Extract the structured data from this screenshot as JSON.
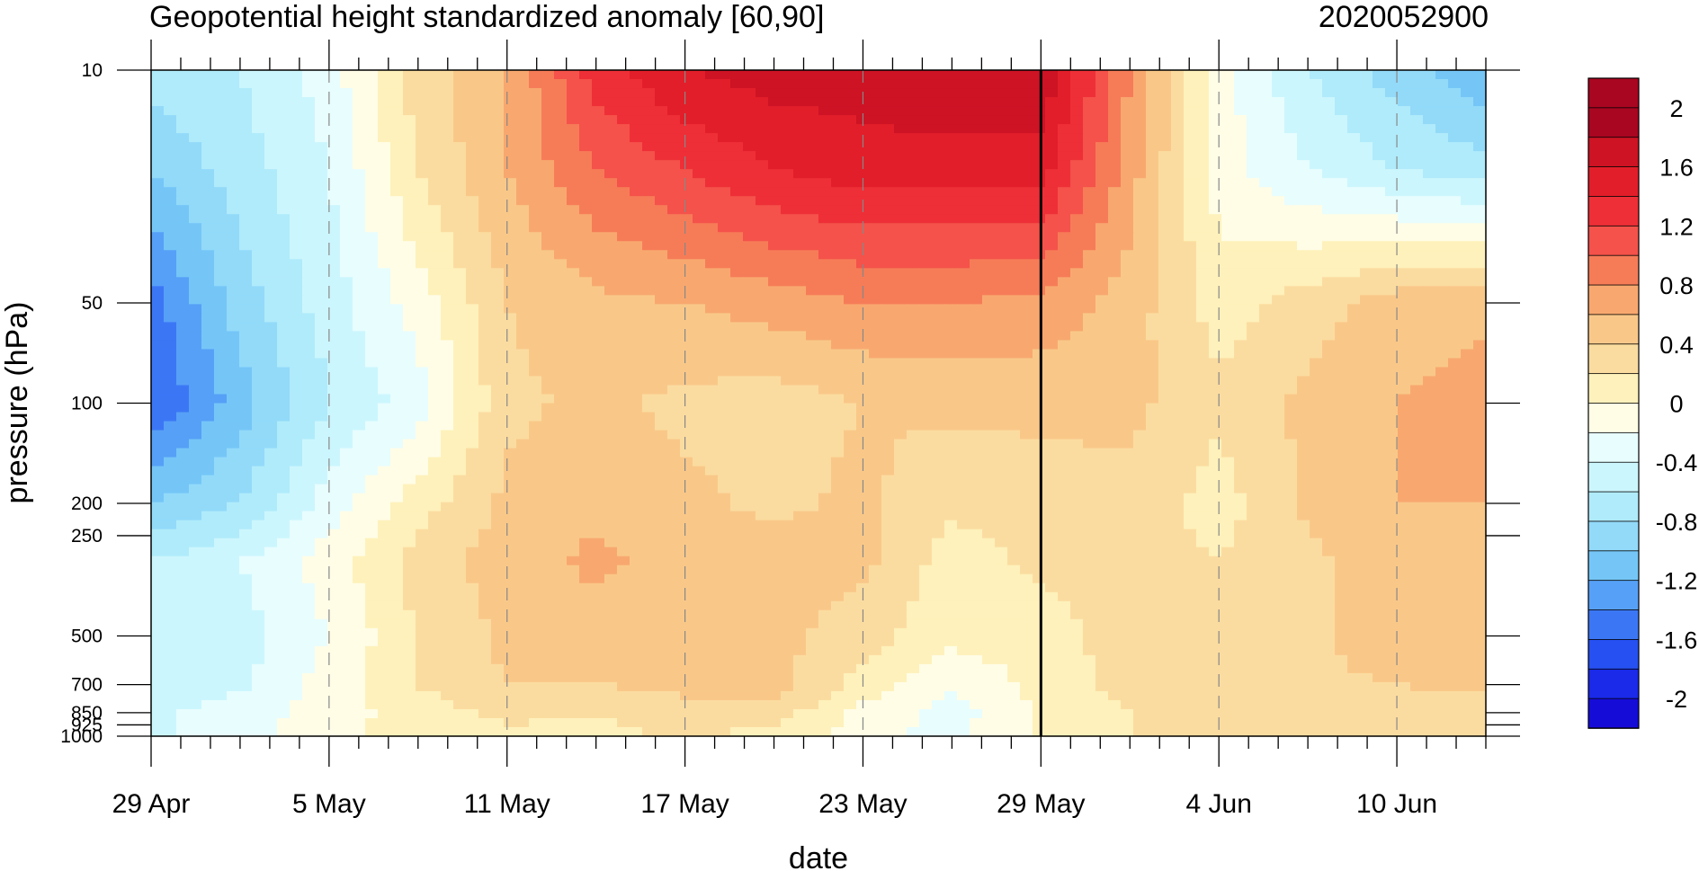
{
  "chart_data": {
    "type": "heatmap",
    "title": "Geopotential height standardized anomaly [60,90]",
    "date_label": "2020052900",
    "xlabel": "date",
    "ylabel": "pressure (hPa)",
    "x_ticks": [
      "29 Apr",
      "5 May",
      "11 May",
      "17 May",
      "23 May",
      "29 May",
      "4 Jun",
      "10 Jun"
    ],
    "y_ticks": [
      10,
      50,
      100,
      200,
      250,
      500,
      700,
      850,
      925,
      1000
    ],
    "x_range_days": [
      -30,
      15
    ],
    "ylim_hpa": [
      1000,
      10
    ],
    "y_scale": "log",
    "current_date_marker": "29 May",
    "colorbar": {
      "labels": [
        "2",
        "1.6",
        "1.2",
        "0.8",
        "0.4",
        "0",
        "-0.4",
        "-0.8",
        "-1.2",
        "-1.6",
        "-2"
      ],
      "levels": [
        -2.2,
        -2,
        -1.8,
        -1.6,
        -1.4,
        -1.2,
        -1,
        -0.8,
        -0.6,
        -0.4,
        -0.2,
        0,
        0.2,
        0.4,
        0.6,
        0.8,
        1,
        1.2,
        1.4,
        1.6,
        1.8,
        2,
        2.2
      ],
      "colors": [
        "#160cd7",
        "#1a2ae8",
        "#2650f2",
        "#3b77f5",
        "#57a0f7",
        "#75c6f7",
        "#93daf9",
        "#b0ebfb",
        "#ccf6fd",
        "#e8fdfe",
        "#fffde6",
        "#fef1bb",
        "#fbdca0",
        "#f9c889",
        "#f8a86f",
        "#f67c58",
        "#f4524a",
        "#ee2f37",
        "#e21e2a",
        "#cd1324",
        "#a90621",
        "#a90621"
      ]
    },
    "days": [
      -30,
      -27,
      -24,
      -21,
      -18,
      -15,
      -12,
      -9,
      -6,
      -3,
      0,
      3,
      6,
      9,
      12,
      15
    ],
    "pressure_levels": [
      10,
      20,
      50,
      100,
      200,
      300,
      500,
      700,
      850,
      1000
    ],
    "values": [
      [
        -0.7,
        -0.6,
        -0.3,
        0.3,
        0.6,
        1.3,
        1.6,
        1.7,
        1.7,
        1.8,
        1.8,
        0.8,
        -0.1,
        -0.6,
        -0.9,
        -1.2
      ],
      [
        -1.0,
        -0.7,
        -0.4,
        0.2,
        0.6,
        1.0,
        1.2,
        1.4,
        1.5,
        1.5,
        1.5,
        0.7,
        -0.1,
        -0.4,
        -0.6,
        -0.7
      ],
      [
        -1.5,
        -0.9,
        -0.5,
        -0.1,
        0.4,
        0.55,
        0.6,
        0.7,
        0.8,
        0.8,
        0.75,
        0.5,
        0.1,
        0.3,
        0.5,
        0.55
      ],
      [
        -1.6,
        -1.1,
        -0.6,
        -0.3,
        0.35,
        0.45,
        0.35,
        0.3,
        0.4,
        0.45,
        0.45,
        0.45,
        0.25,
        0.45,
        0.6,
        0.7
      ],
      [
        -1.0,
        -0.8,
        -0.3,
        0.1,
        0.45,
        0.55,
        0.45,
        0.35,
        0.45,
        0.25,
        0.3,
        0.35,
        0.1,
        0.45,
        0.6,
        0.6
      ],
      [
        -0.6,
        -0.4,
        -0.1,
        0.3,
        0.5,
        0.65,
        0.5,
        0.5,
        0.45,
        0.1,
        0.25,
        0.3,
        0.2,
        0.35,
        0.55,
        0.55
      ],
      [
        -0.5,
        -0.5,
        -0.2,
        0.2,
        0.45,
        0.5,
        0.45,
        0.45,
        0.3,
        0.05,
        0.1,
        0.3,
        0.3,
        0.35,
        0.55,
        0.6
      ],
      [
        -0.5,
        -0.45,
        -0.1,
        0.2,
        0.4,
        0.4,
        0.45,
        0.5,
        0.1,
        -0.15,
        0.05,
        0.3,
        0.35,
        0.35,
        0.4,
        0.45
      ],
      [
        -0.45,
        -0.3,
        -0.1,
        0.1,
        0.25,
        0.2,
        0.35,
        0.3,
        -0.05,
        -0.3,
        0.05,
        0.2,
        0.25,
        0.3,
        0.3,
        0.3
      ],
      [
        -0.45,
        -0.3,
        -0.05,
        0.1,
        0.15,
        0.15,
        0.2,
        0.15,
        -0.15,
        -0.25,
        0.05,
        0.2,
        0.2,
        0.25,
        0.25,
        0.25
      ]
    ]
  }
}
